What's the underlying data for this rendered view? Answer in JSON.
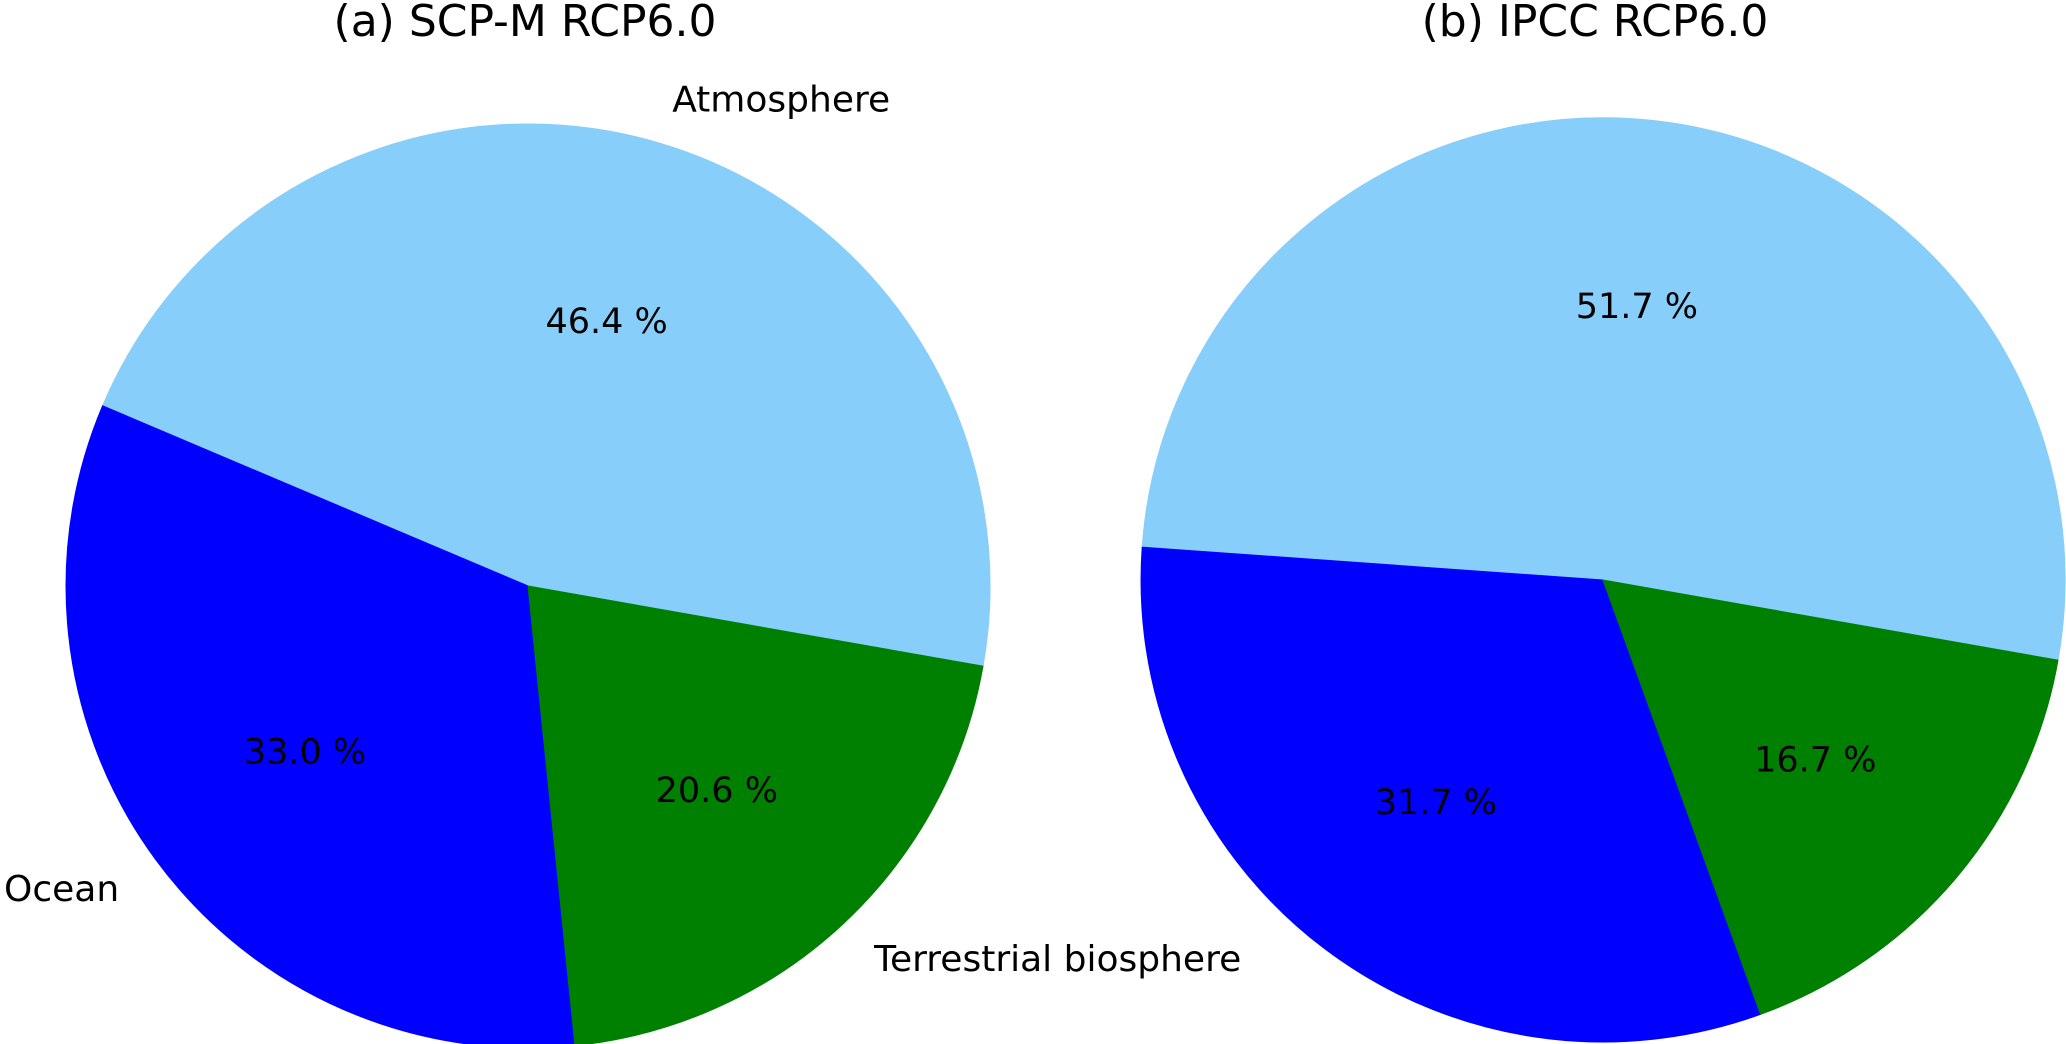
{
  "figure": {
    "background_color": "#ffffff",
    "text_color": "#000000"
  },
  "chart_data": [
    {
      "type": "pie",
      "title": "(a) SCP-M RCP6.0",
      "categories": [
        "Atmosphere",
        "Ocean",
        "Terrestrial biosphere"
      ],
      "values": [
        46.4,
        33.0,
        20.6
      ],
      "pct_labels": [
        "46.4 %",
        "33.0 %",
        "20.6 %"
      ],
      "colors": [
        "#87CEFA",
        "#0000FF",
        "#008000"
      ],
      "start_angle_deg": -10,
      "counterclockwise": true,
      "show_category_labels": true,
      "pct_distance": 0.6,
      "label_distance": 1.1
    },
    {
      "type": "pie",
      "title": "(b) IPCC RCP6.0",
      "categories": [
        "Atmosphere",
        "Ocean",
        "Terrestrial biosphere"
      ],
      "values": [
        51.7,
        31.7,
        16.7
      ],
      "pct_labels": [
        "51.7 %",
        "31.7 %",
        "16.7 %"
      ],
      "colors": [
        "#87CEFA",
        "#0000FF",
        "#008000"
      ],
      "start_angle_deg": -10,
      "counterclockwise": true,
      "show_category_labels": false,
      "pct_distance": 0.6,
      "label_distance": 1.1
    }
  ]
}
